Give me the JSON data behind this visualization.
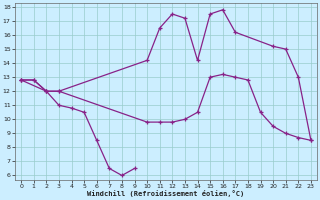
{
  "xlabel": "Windchill (Refroidissement éolien,°C)",
  "bg_color": "#cceeff",
  "grid_color": "#99cccc",
  "line_color": "#882288",
  "xlim_min": -0.5,
  "xlim_max": 23.5,
  "ylim_min": 5.7,
  "ylim_max": 18.3,
  "xticks": [
    0,
    1,
    2,
    3,
    4,
    5,
    6,
    7,
    8,
    9,
    10,
    11,
    12,
    13,
    14,
    15,
    16,
    17,
    18,
    19,
    20,
    21,
    22,
    23
  ],
  "yticks": [
    6,
    7,
    8,
    9,
    10,
    11,
    12,
    13,
    14,
    15,
    16,
    17,
    18
  ],
  "line1_x": [
    0,
    1,
    2,
    3,
    4,
    5,
    6,
    7,
    8,
    9
  ],
  "line1_y": [
    12.8,
    12.8,
    12.0,
    11.0,
    10.8,
    10.5,
    8.5,
    6.5,
    6.0,
    6.5
  ],
  "line2_x": [
    0,
    2,
    3,
    10,
    11,
    12,
    13,
    14,
    15,
    16,
    17,
    20,
    21,
    22,
    23
  ],
  "line2_y": [
    12.8,
    12.0,
    12.0,
    14.2,
    16.5,
    17.5,
    17.2,
    14.2,
    17.5,
    17.8,
    16.2,
    15.2,
    15.0,
    13.0,
    8.5
  ],
  "line3_x": [
    0,
    1,
    2,
    3,
    10,
    11,
    12,
    13,
    14,
    15,
    16,
    17,
    18,
    19,
    20,
    21,
    22,
    23
  ],
  "line3_y": [
    12.8,
    12.8,
    12.0,
    12.0,
    9.8,
    9.8,
    9.8,
    10.0,
    10.5,
    13.0,
    13.2,
    13.0,
    12.8,
    10.5,
    9.5,
    9.0,
    8.7,
    8.5
  ],
  "marker": "+",
  "markersize": 3.5,
  "linewidth": 0.9
}
